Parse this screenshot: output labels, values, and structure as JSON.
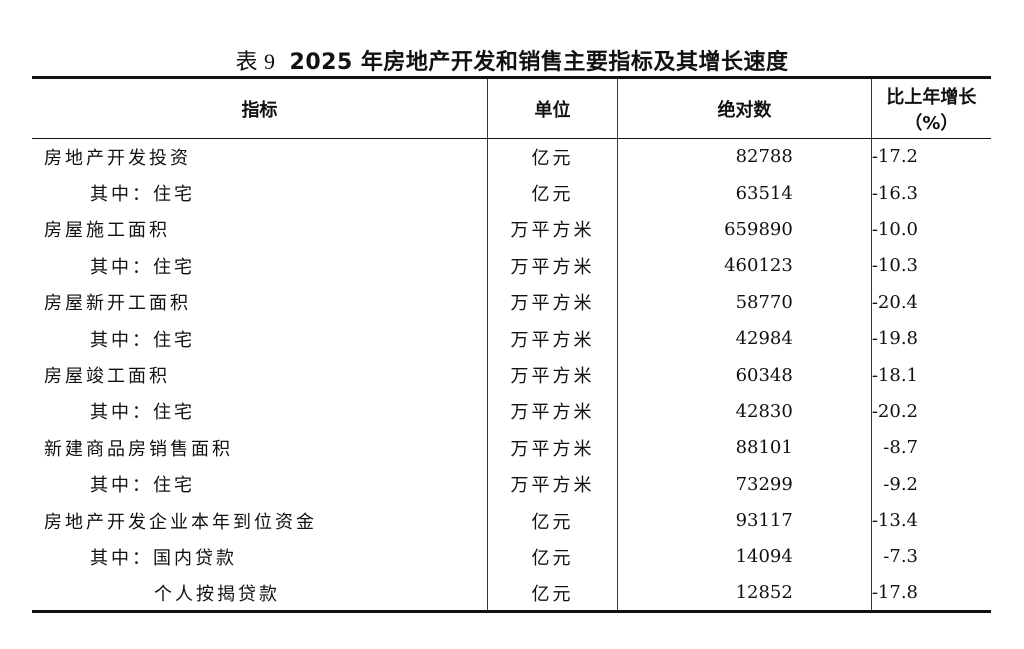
{
  "title": {
    "number": "表 9",
    "text": "2025 年房地产开发和销售主要指标及其增长速度"
  },
  "columns": [
    "指标",
    "单位",
    "绝对数",
    "比上年增长（%）"
  ],
  "rows": [
    {
      "indicator": "房地产开发投资",
      "level": 0,
      "unit": "亿元",
      "value": "82788",
      "growth": "-17.2"
    },
    {
      "indicator": "其中：住宅",
      "level": 1,
      "unit": "亿元",
      "value": "63514",
      "growth": "-16.3"
    },
    {
      "indicator": "房屋施工面积",
      "level": 0,
      "unit": "万平方米",
      "value": "659890",
      "growth": "-10.0"
    },
    {
      "indicator": "其中：住宅",
      "level": 1,
      "unit": "万平方米",
      "value": "460123",
      "growth": "-10.3"
    },
    {
      "indicator": "房屋新开工面积",
      "level": 0,
      "unit": "万平方米",
      "value": "58770",
      "growth": "-20.4"
    },
    {
      "indicator": "其中：住宅",
      "level": 1,
      "unit": "万平方米",
      "value": "42984",
      "growth": "-19.8"
    },
    {
      "indicator": "房屋竣工面积",
      "level": 0,
      "unit": "万平方米",
      "value": "60348",
      "growth": "-18.1"
    },
    {
      "indicator": "其中：住宅",
      "level": 1,
      "unit": "万平方米",
      "value": "42830",
      "growth": "-20.2"
    },
    {
      "indicator": "新建商品房销售面积",
      "level": 0,
      "unit": "万平方米",
      "value": "88101",
      "growth": "-8.7"
    },
    {
      "indicator": "其中：住宅",
      "level": 1,
      "unit": "万平方米",
      "value": "73299",
      "growth": "-9.2"
    },
    {
      "indicator": "房地产开发企业本年到位资金",
      "level": 0,
      "unit": "亿元",
      "value": "93117",
      "growth": "-13.4"
    },
    {
      "indicator": "其中：国内贷款",
      "level": 1,
      "unit": "亿元",
      "value": "14094",
      "growth": "-7.3"
    },
    {
      "indicator": "个人按揭贷款",
      "level": 2,
      "unit": "亿元",
      "value": "12852",
      "growth": "-17.8"
    }
  ]
}
